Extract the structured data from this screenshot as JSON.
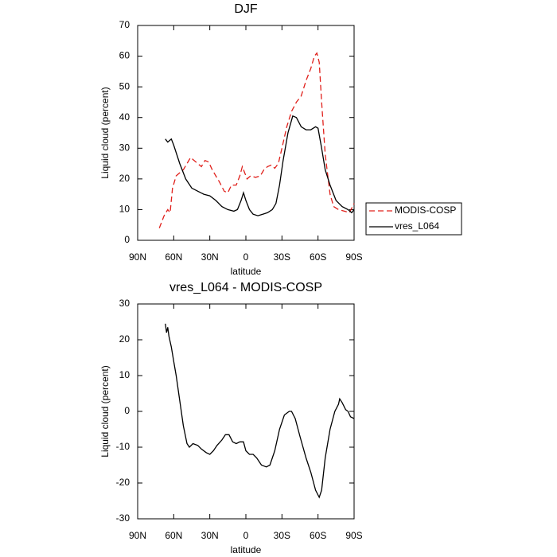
{
  "chart_data": [
    {
      "type": "line",
      "title": "DJF",
      "ylabel": "Liquid cloud (percent)",
      "xlabel": "latitude",
      "xlim": [
        90,
        -90
      ],
      "ylim": [
        0,
        70
      ],
      "xticks": [
        {
          "value": 90,
          "label": "90N"
        },
        {
          "value": 60,
          "label": "60N"
        },
        {
          "value": 30,
          "label": "30N"
        },
        0,
        {
          "value": -30,
          "label": "30S"
        },
        {
          "value": -60,
          "label": "60S"
        },
        {
          "value": -90,
          "label": "90S"
        }
      ],
      "yticks": [
        0,
        10,
        20,
        30,
        40,
        50,
        60,
        70
      ],
      "legend": "right",
      "series": [
        {
          "name": "MODIS-COSP",
          "color": "#e0201b",
          "line_style": "dashed",
          "x": [
            72,
            70,
            68,
            65,
            63,
            61,
            58,
            55,
            52,
            49,
            46,
            43,
            40,
            37,
            34,
            31,
            28,
            25,
            22,
            18,
            15,
            12,
            8,
            5,
            3,
            1,
            -1,
            -4,
            -8,
            -12,
            -15,
            -18,
            -21,
            -24,
            -27,
            -30,
            -34,
            -38,
            -42,
            -46,
            -50,
            -54,
            -57,
            -59,
            -61,
            -63,
            -66,
            -70,
            -73,
            -77,
            -82,
            -86,
            -90
          ],
          "values": [
            4,
            6,
            8,
            10,
            9,
            17,
            21,
            22,
            23,
            25,
            27,
            26,
            25,
            24,
            26,
            25.5,
            23,
            21,
            19,
            16,
            15.5,
            18,
            18,
            21,
            24,
            22,
            20,
            21,
            20.5,
            21,
            23,
            24,
            24.5,
            23.5,
            25,
            30,
            37,
            42,
            45,
            47,
            52,
            56,
            60,
            61,
            58,
            45,
            28,
            15,
            11,
            10,
            9.5,
            9,
            12
          ]
        },
        {
          "name": "vres_L064",
          "color": "#000000",
          "line_style": "solid",
          "x": [
            67,
            65,
            62,
            60,
            55,
            50,
            45,
            40,
            35,
            30,
            25,
            20,
            15,
            10,
            7,
            4,
            2,
            0,
            -3,
            -6,
            -10,
            -14,
            -18,
            -22,
            -25,
            -28,
            -31,
            -35,
            -39,
            -42,
            -46,
            -50,
            -54,
            -58,
            -60,
            -63,
            -66,
            -70,
            -75,
            -80,
            -85,
            -88,
            -90
          ],
          "values": [
            33,
            32,
            33,
            31,
            25,
            20,
            17,
            16,
            15,
            14.5,
            13,
            11,
            10,
            9.5,
            10,
            13,
            15.5,
            13,
            10,
            8.5,
            8,
            8.5,
            9,
            10,
            12,
            18,
            26,
            35,
            40.5,
            40,
            37,
            36,
            36,
            37,
            36.5,
            30,
            23,
            18,
            13,
            11,
            10,
            9,
            10
          ]
        }
      ]
    },
    {
      "type": "line",
      "title": "vres_L064 - MODIS-COSP",
      "ylabel": "Liquid cloud (percent)",
      "xlabel": "latitude",
      "xlim": [
        90,
        -90
      ],
      "ylim": [
        -30,
        30
      ],
      "xticks": [
        {
          "value": 90,
          "label": "90N"
        },
        {
          "value": 60,
          "label": "60N"
        },
        {
          "value": 30,
          "label": "30N"
        },
        0,
        {
          "value": -30,
          "label": "30S"
        },
        {
          "value": -60,
          "label": "60S"
        },
        {
          "value": -90,
          "label": "90S"
        }
      ],
      "yticks": [
        -30,
        -20,
        -10,
        0,
        10,
        20,
        30
      ],
      "series": [
        {
          "color": "#000000",
          "line_style": "solid",
          "x": [
            67,
            66,
            65,
            64,
            62,
            60,
            58,
            55,
            52,
            49,
            47,
            44,
            40,
            37,
            33,
            30,
            27,
            24,
            20,
            17,
            14,
            11,
            8,
            5,
            2,
            0,
            -3,
            -6,
            -9,
            -13,
            -17,
            -20,
            -24,
            -28,
            -32,
            -36,
            -38,
            -41,
            -45,
            -50,
            -54,
            -58,
            -61,
            -63,
            -66,
            -70,
            -74,
            -77,
            -78,
            -80,
            -83,
            -85,
            -87,
            -90
          ],
          "values": [
            24.5,
            22,
            23.5,
            21,
            18,
            14,
            10,
            3,
            -4,
            -9,
            -10,
            -9,
            -9.5,
            -10.5,
            -11.5,
            -12,
            -11,
            -9.5,
            -8,
            -6.5,
            -6.5,
            -8.5,
            -9,
            -8.5,
            -8.5,
            -11,
            -12,
            -12,
            -13,
            -15,
            -15.5,
            -15,
            -11,
            -5,
            -1,
            0,
            0,
            -2,
            -7,
            -13,
            -17,
            -22,
            -24,
            -22,
            -13,
            -5,
            0,
            2,
            3.5,
            2.5,
            0.5,
            0,
            -1.5,
            -2
          ]
        }
      ]
    }
  ]
}
